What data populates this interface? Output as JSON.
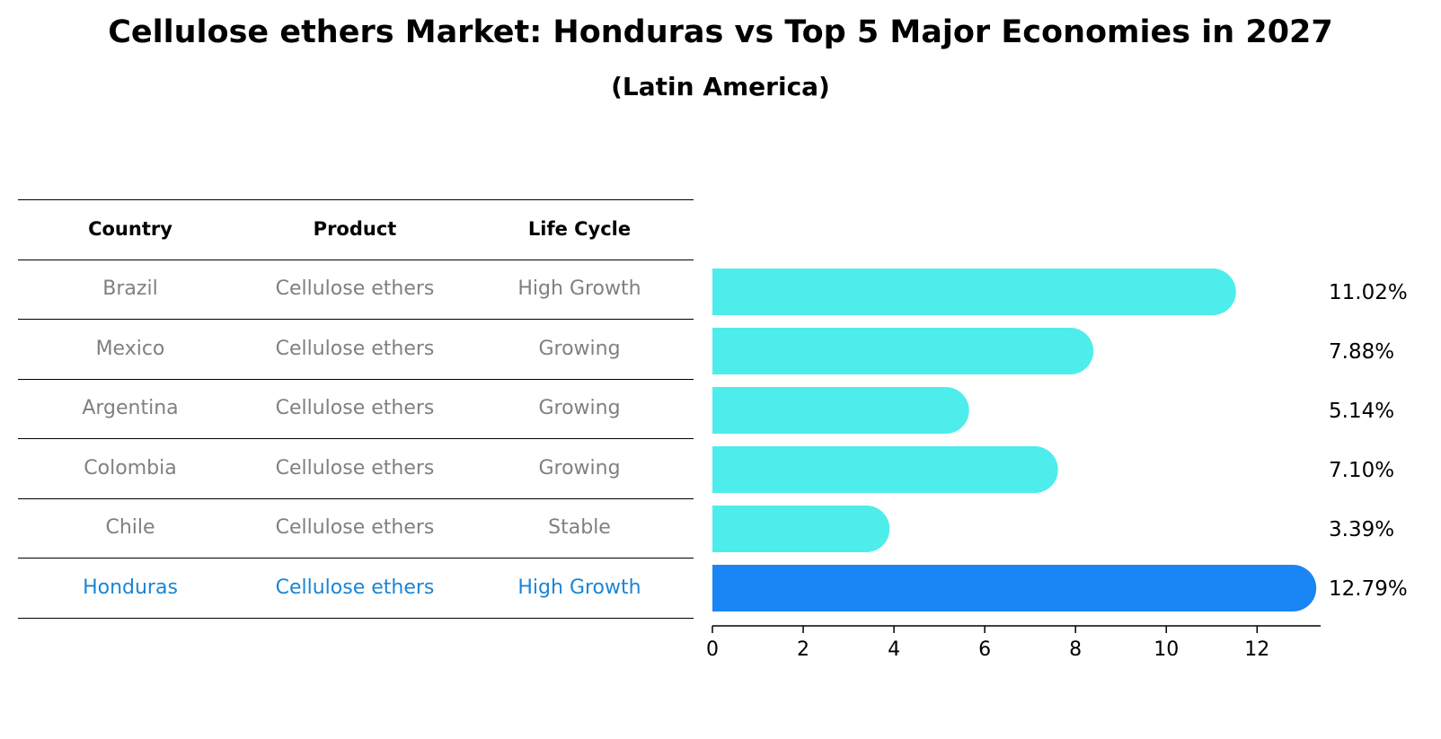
{
  "title": "Cellulose ethers Market: Honduras vs Top 5 Major Economies in 2027",
  "subtitle": "(Latin America)",
  "table": {
    "headers": [
      "Country",
      "Product",
      "Life Cycle"
    ],
    "rows": [
      {
        "country": "Brazil",
        "product": "Cellulose ethers",
        "life_cycle": "High Growth"
      },
      {
        "country": "Mexico",
        "product": "Cellulose ethers",
        "life_cycle": "Growing"
      },
      {
        "country": "Argentina",
        "product": "Cellulose ethers",
        "life_cycle": "Growing"
      },
      {
        "country": "Colombia",
        "product": "Cellulose ethers",
        "life_cycle": "Growing"
      },
      {
        "country": "Chile",
        "product": "Cellulose ethers",
        "life_cycle": "Stable"
      },
      {
        "country": "Honduras",
        "product": "Cellulose ethers",
        "life_cycle": "High Growth"
      }
    ]
  },
  "chart_data": {
    "type": "bar",
    "orientation": "horizontal",
    "categories": [
      "Brazil",
      "Mexico",
      "Argentina",
      "Colombia",
      "Chile",
      "Honduras"
    ],
    "values": [
      11.02,
      7.88,
      5.14,
      7.1,
      3.39,
      12.79
    ],
    "value_labels": [
      "11.02%",
      "7.88%",
      "5.14%",
      "7.10%",
      "3.39%",
      "12.79%"
    ],
    "highlight_index": 5,
    "xlim": [
      0,
      13.4
    ],
    "xticks": [
      0,
      2,
      4,
      6,
      8,
      10,
      12
    ],
    "grid": false,
    "colors": {
      "default": "#4dedeb",
      "highlight": "#1a85f5"
    }
  }
}
